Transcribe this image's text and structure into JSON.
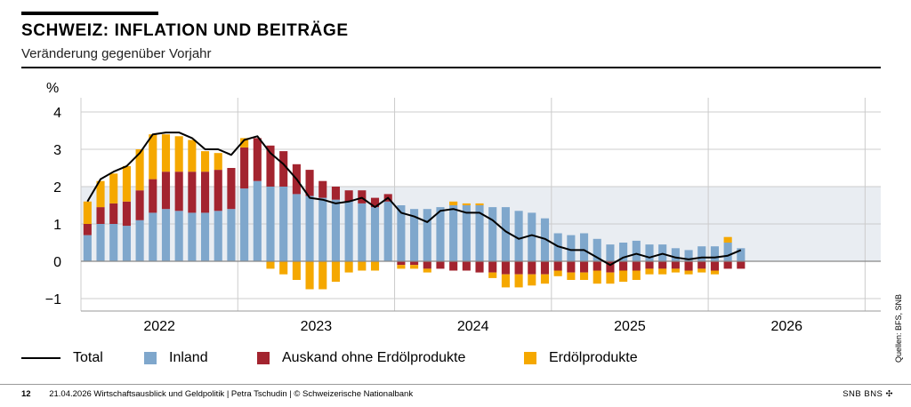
{
  "header": {
    "title": "SCHWEIZ: INFLATION UND BEITRÄGE",
    "subtitle": "Veränderung gegenüber Vorjahr"
  },
  "legend": {
    "total": "Total",
    "inland": "Inland",
    "ausland": "Auskand ohne Erdölprodukte",
    "erdoel": "Erdölprodukte"
  },
  "source": "Quellen: BFS, SNB",
  "footer": {
    "page": "12",
    "text": "21.04.2026   Wirtschaftsausblick und Geldpolitik  |  Petra Tschudin  |  © Schweizerische Nationalbank",
    "logo": "SNB BNS ✣"
  },
  "colors": {
    "inland": "#7fa7cc",
    "ausland": "#a3242f",
    "erdoel": "#f5a800",
    "total": "#000000",
    "band": "#e9edf2",
    "grid": "#cccccc"
  },
  "chart_data": {
    "type": "bar",
    "stacked": true,
    "ylabel": "%",
    "ylim": [
      -1.4,
      4.3
    ],
    "yticks": [
      4,
      3,
      2,
      1,
      0,
      -1
    ],
    "ytick_labels": [
      "4",
      "3",
      "2",
      "1",
      "0",
      "−1"
    ],
    "years": [
      "2022",
      "2023",
      "2024",
      "2025",
      "2026"
    ],
    "x_start": "2022-01",
    "x_end": "2026-12",
    "target_band": [
      0,
      2
    ],
    "grid": true,
    "series": [
      {
        "name": "Inland",
        "values": [
          0.7,
          1.0,
          1.0,
          0.95,
          1.1,
          1.3,
          1.4,
          1.35,
          1.3,
          1.3,
          1.35,
          1.4,
          1.95,
          2.15,
          2.0,
          2.0,
          1.8,
          1.75,
          1.7,
          1.65,
          1.6,
          1.55,
          1.45,
          1.6,
          1.5,
          1.4,
          1.4,
          1.45,
          1.5,
          1.5,
          1.5,
          1.45,
          1.45,
          1.35,
          1.3,
          1.15,
          0.75,
          0.7,
          0.75,
          0.6,
          0.45,
          0.5,
          0.55,
          0.45,
          0.45,
          0.35,
          0.3,
          0.4,
          0.4,
          0.5,
          0.35
        ]
      },
      {
        "name": "Ausland ohne Erdölprodukte",
        "values": [
          0.3,
          0.45,
          0.55,
          0.65,
          0.8,
          0.9,
          1.0,
          1.05,
          1.1,
          1.1,
          1.1,
          1.1,
          1.1,
          1.15,
          1.1,
          0.95,
          0.8,
          0.7,
          0.45,
          0.35,
          0.3,
          0.35,
          0.25,
          0.2,
          -0.1,
          -0.1,
          -0.2,
          -0.2,
          -0.25,
          -0.25,
          -0.3,
          -0.3,
          -0.35,
          -0.35,
          -0.35,
          -0.35,
          -0.25,
          -0.3,
          -0.3,
          -0.25,
          -0.3,
          -0.25,
          -0.25,
          -0.2,
          -0.2,
          -0.2,
          -0.25,
          -0.2,
          -0.25,
          -0.2,
          -0.2
        ]
      },
      {
        "name": "Erdölprodukte",
        "values": [
          0.6,
          0.7,
          0.8,
          0.95,
          1.1,
          1.2,
          1.0,
          0.95,
          0.85,
          0.55,
          0.45,
          0.0,
          0.25,
          0.0,
          -0.2,
          -0.35,
          -0.5,
          -0.75,
          -0.75,
          -0.55,
          -0.3,
          -0.25,
          -0.25,
          0.0,
          -0.1,
          -0.1,
          -0.1,
          0.0,
          0.1,
          0.05,
          0.05,
          -0.15,
          -0.35,
          -0.35,
          -0.3,
          -0.25,
          -0.15,
          -0.2,
          -0.2,
          -0.35,
          -0.3,
          -0.3,
          -0.25,
          -0.15,
          -0.15,
          -0.1,
          -0.1,
          -0.1,
          -0.1,
          0.15,
          0.0
        ]
      }
    ],
    "total": {
      "name": "Total",
      "values": [
        1.6,
        2.2,
        2.4,
        2.55,
        2.9,
        3.4,
        3.45,
        3.45,
        3.3,
        3.0,
        3.0,
        2.85,
        3.25,
        3.35,
        2.9,
        2.6,
        2.2,
        1.7,
        1.65,
        1.55,
        1.6,
        1.7,
        1.45,
        1.7,
        1.3,
        1.2,
        1.05,
        1.35,
        1.4,
        1.3,
        1.3,
        1.1,
        0.8,
        0.6,
        0.7,
        0.6,
        0.4,
        0.3,
        0.3,
        0.1,
        -0.1,
        0.1,
        0.2,
        0.1,
        0.2,
        0.1,
        0.05,
        0.1,
        0.1,
        0.15,
        0.3
      ]
    }
  }
}
